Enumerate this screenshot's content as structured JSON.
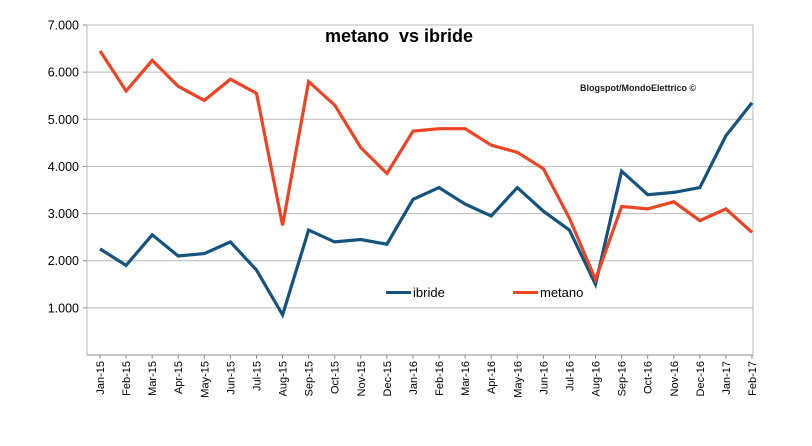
{
  "page": {
    "watermark": "Blogspot/MondoElettrico ©"
  },
  "chart_data": {
    "type": "line",
    "title": "metano  vs ibride",
    "xlabel": "",
    "ylabel": "",
    "ylim": [
      0,
      7000
    ],
    "y_tick_step": 1000,
    "y_tick_labels": [
      "1.000",
      "2.000",
      "3.000",
      "4.000",
      "5.000",
      "6.000",
      "7.000"
    ],
    "grid": "horizontal",
    "gridline_color": "#b9b9b9",
    "legend_position": "inside-bottom-center",
    "categories": [
      "Jan-15",
      "Feb-15",
      "Mar-15",
      "Apr-15",
      "May-15",
      "Jun-15",
      "Jul-15",
      "Aug-15",
      "Sep-15",
      "Oct-15",
      "Nov-15",
      "Dec-15",
      "Jan-16",
      "Feb-16",
      "Mar-16",
      "Apr-16",
      "May-16",
      "Jun-16",
      "Jul-16",
      "Aug-16",
      "Sep-16",
      "Oct-16",
      "Nov-16",
      "Dec-16",
      "Jan-17",
      "Feb-17"
    ],
    "series": [
      {
        "name": "ibride",
        "color": "#14537e",
        "values": [
          2250,
          1900,
          2550,
          2100,
          2150,
          2400,
          1800,
          850,
          2650,
          2400,
          2450,
          2350,
          3300,
          3550,
          3200,
          2950,
          3550,
          3050,
          2650,
          1500,
          3900,
          3400,
          3450,
          3550,
          4650,
          5350
        ]
      },
      {
        "name": "metano",
        "color": "#ee4424",
        "values": [
          6450,
          5600,
          6250,
          5700,
          5400,
          5850,
          5550,
          2750,
          5800,
          5300,
          4400,
          3850,
          4750,
          4800,
          4800,
          4450,
          4300,
          3950,
          2900,
          1600,
          3150,
          3100,
          3250,
          2850,
          3100,
          2600
        ]
      }
    ]
  }
}
